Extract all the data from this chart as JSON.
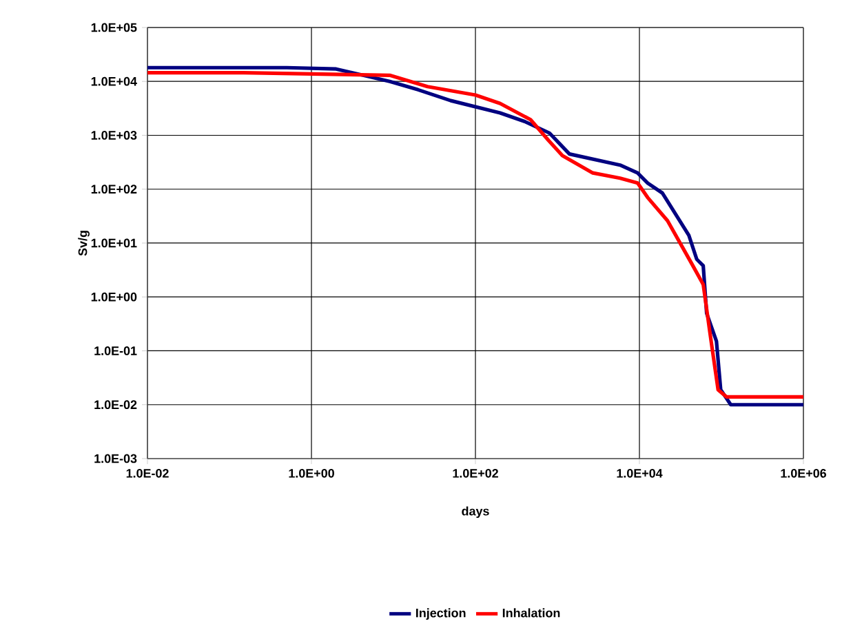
{
  "chart_data": {
    "type": "line",
    "xlabel": "days",
    "ylabel": "Sv/g",
    "log": "xy",
    "grid": true,
    "legend": "bottom",
    "line_style": "solid",
    "marker": "none",
    "xlim": [
      0.01,
      1000000
    ],
    "ylim": [
      0.001,
      100000
    ],
    "xticks": [
      {
        "value": 0.01,
        "label": "1.0E-02"
      },
      {
        "value": 1,
        "label": "1.0E+00"
      },
      {
        "value": 100,
        "label": "1.0E+02"
      },
      {
        "value": 10000,
        "label": "1.0E+04"
      },
      {
        "value": 1000000,
        "label": "1.0E+06"
      }
    ],
    "yticks": [
      {
        "value": 0.001,
        "label": "1.0E-03"
      },
      {
        "value": 0.01,
        "label": "1.0E-02"
      },
      {
        "value": 0.1,
        "label": "1.0E-01"
      },
      {
        "value": 1,
        "label": "1.0E+00"
      },
      {
        "value": 10,
        "label": "1.0E+01"
      },
      {
        "value": 100,
        "label": "1.0E+02"
      },
      {
        "value": 1000,
        "label": "1.0E+03"
      },
      {
        "value": 10000,
        "label": "1.0E+04"
      },
      {
        "value": 100000,
        "label": "1.0E+05"
      }
    ],
    "series": [
      {
        "name": "Injection",
        "color": "#000080",
        "x": [
          0.01,
          0.5,
          2,
          9,
          20,
          50,
          200,
          400,
          800,
          1400,
          5800,
          9500,
          12600,
          19000,
          40000,
          50000,
          60000,
          66000,
          87000,
          98000,
          130000,
          1000000
        ],
        "values": [
          18000,
          18000,
          17000,
          10000,
          7000,
          4400,
          2600,
          1800,
          1100,
          450,
          280,
          200,
          130,
          85,
          14,
          5,
          3.8,
          0.5,
          0.15,
          0.019,
          0.01,
          0.01
        ]
      },
      {
        "name": "Inhalation",
        "color": "#ff0000",
        "x": [
          0.01,
          0.15,
          9,
          26,
          100,
          200,
          470,
          780,
          1150,
          2700,
          5800,
          9500,
          12600,
          22000,
          44000,
          60000,
          72000,
          91000,
          115000,
          1000000
        ],
        "values": [
          14500,
          14500,
          13000,
          8000,
          5600,
          3900,
          1950,
          800,
          420,
          200,
          160,
          130,
          70,
          26,
          4,
          1.7,
          0.23,
          0.019,
          0.014,
          0.014
        ]
      }
    ]
  }
}
